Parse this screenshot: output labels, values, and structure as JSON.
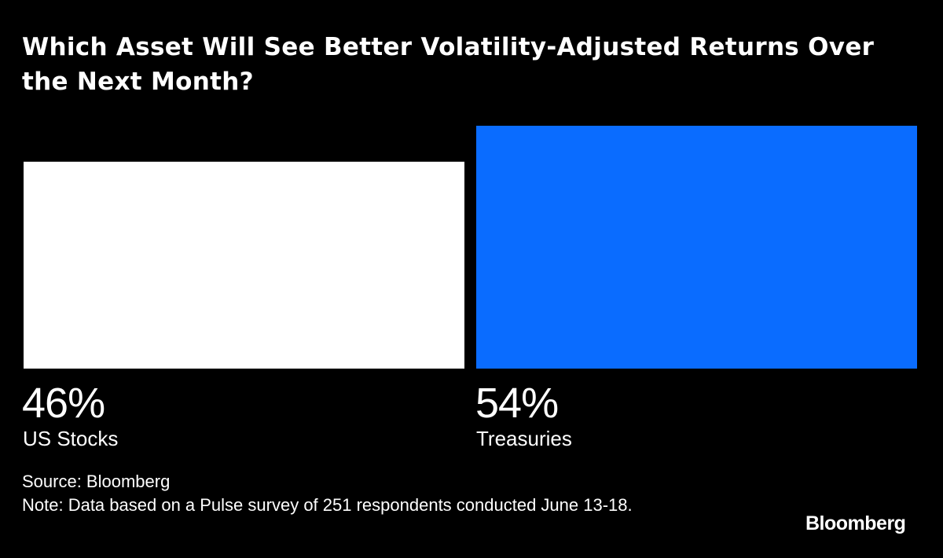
{
  "title": "Which Asset Will See Better Volatility-Adjusted Returns Over the Next Month?",
  "chart_data": {
    "type": "bar",
    "title": "Which Asset Will See Better Volatility-Adjusted Returns Over the Next Month?",
    "categories": [
      "US Stocks",
      "Treasuries"
    ],
    "values": [
      46,
      54
    ],
    "value_labels": [
      "46%",
      "54%"
    ],
    "colors": [
      "#ffffff",
      "#0a6cff"
    ],
    "xlabel": "",
    "ylabel": "",
    "ylim": [
      0,
      54
    ]
  },
  "source": "Source: Bloomberg",
  "note": "Note: Data based on a Pulse survey of 251 respondents conducted June 13-18.",
  "logo": "Bloomberg"
}
